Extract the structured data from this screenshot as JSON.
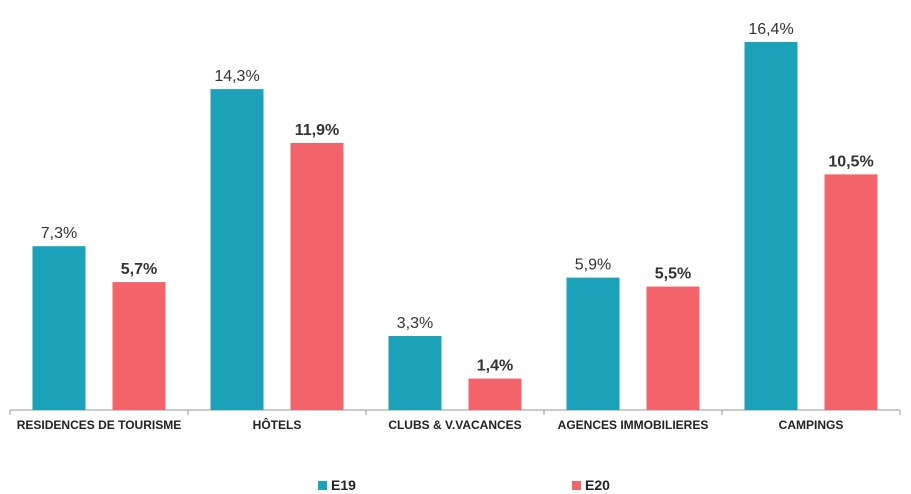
{
  "chart_data": {
    "type": "bar",
    "categories": [
      "RESIDENCES DE TOURISME",
      "HÔTELS",
      "CLUBS & V.VACANCES",
      "AGENCES IMMOBILIERES",
      "CAMPINGS"
    ],
    "series": [
      {
        "name": "E19",
        "color": "#1ba1b8",
        "values": [
          7.3,
          14.3,
          3.3,
          5.9,
          16.4
        ],
        "value_labels": [
          "7,3%",
          "14,3%",
          "3,3%",
          "5,9%",
          "16,4%"
        ]
      },
      {
        "name": "E20",
        "color": "#f2636a",
        "values": [
          5.7,
          11.9,
          1.4,
          5.5,
          10.5
        ],
        "value_labels": [
          "5,7%",
          "11,9%",
          "1,4%",
          "5,5%",
          "10,5%"
        ]
      }
    ],
    "legend": "bottom"
  }
}
